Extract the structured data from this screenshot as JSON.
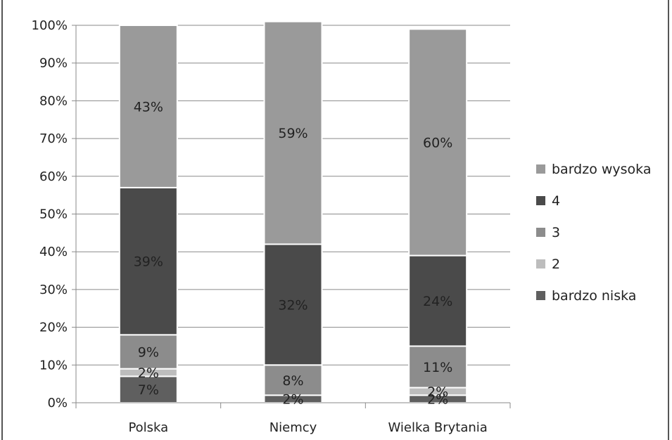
{
  "chart_data": {
    "type": "bar",
    "stacked": true,
    "percent": true,
    "categories": [
      "Polska",
      "Niemcy",
      "Wielka Brytania"
    ],
    "series": [
      {
        "name": "bardzo niska",
        "color": "#5f5f5f",
        "values": [
          7,
          2,
          2
        ],
        "labels": [
          "7%",
          "2%",
          "2%"
        ]
      },
      {
        "name": "2",
        "color": "#bdbdbd",
        "values": [
          2,
          0,
          2
        ],
        "labels": [
          "2%",
          "",
          "2%"
        ]
      },
      {
        "name": "3",
        "color": "#8c8c8c",
        "values": [
          9,
          8,
          11
        ],
        "labels": [
          "9%",
          "8%",
          "11%"
        ]
      },
      {
        "name": "4",
        "color": "#4a4a4a",
        "values": [
          39,
          32,
          24
        ],
        "labels": [
          "39%",
          "32%",
          "24%"
        ]
      },
      {
        "name": "bardzo wysoka",
        "color": "#9a9a9a",
        "values": [
          43,
          59,
          60
        ],
        "labels": [
          "43%",
          "59%",
          "60%"
        ]
      }
    ],
    "ylim": [
      0,
      100
    ],
    "yticks": [
      "0%",
      "10%",
      "20%",
      "30%",
      "40%",
      "50%",
      "60%",
      "70%",
      "80%",
      "90%",
      "100%"
    ],
    "grid": true,
    "legend_position": "right",
    "legend_order": [
      "bardzo wysoka",
      "4",
      "3",
      "2",
      "bardzo niska"
    ],
    "title": "",
    "xlabel": "",
    "ylabel": ""
  }
}
